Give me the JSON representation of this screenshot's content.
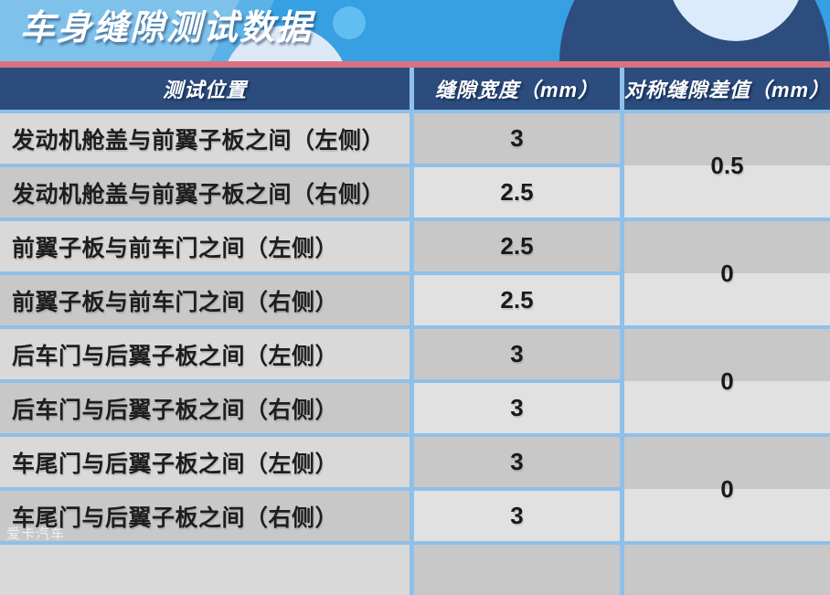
{
  "banner": {
    "title": "车身缝隙测试数据"
  },
  "watermark": "爱卡汽车",
  "table": {
    "headers": [
      "测试位置",
      "缝隙宽度（mm）",
      "对称缝隙差值（mm）"
    ],
    "rows": [
      {
        "position": "发动机舱盖与前翼子板之间（左侧）",
        "gap_width_mm": "3"
      },
      {
        "position": "发动机舱盖与前翼子板之间（右侧）",
        "gap_width_mm": "2.5"
      },
      {
        "position": "前翼子板与前车门之间（左侧）",
        "gap_width_mm": "2.5"
      },
      {
        "position": "前翼子板与前车门之间（右侧）",
        "gap_width_mm": "2.5"
      },
      {
        "position": "后车门与后翼子板之间（左侧）",
        "gap_width_mm": "3"
      },
      {
        "position": "后车门与后翼子板之间（右侧）",
        "gap_width_mm": "3"
      },
      {
        "position": "车尾门与后翼子板之间（左侧）",
        "gap_width_mm": "3"
      },
      {
        "position": "车尾门与后翼子板之间（右侧）",
        "gap_width_mm": "3"
      }
    ],
    "symmetric_diffs_mm": [
      "0.5",
      "0",
      "0",
      "0"
    ]
  },
  "colors": {
    "banner_light_blue": "#7EC2EC",
    "banner_bright_blue": "#36A0E2",
    "banner_navy_circle": "#2C4D7D",
    "banner_pale_circle": "#DDE9F7",
    "banner_light_circle": "#DCEBFB",
    "banner_small_dot": "#62BDF0",
    "pink_divider": "#DA7282",
    "header_navy": "#2B4C7C",
    "cell_border_blue": "#8FC0E8",
    "cell_gray_light": "#D9D9D9",
    "cell_gray_dark": "#C8C8C8",
    "cell_gray_lighter": "#E1E1E1",
    "text_dark": "#1E1E1E",
    "text_white": "#FFFFFF"
  },
  "chart_data": {
    "type": "table",
    "title": "车身缝隙测试数据",
    "columns": [
      "测试位置",
      "缝隙宽度（mm）",
      "对称缝隙差值（mm）"
    ],
    "rows": [
      [
        "发动机舱盖与前翼子板之间（左侧）",
        3,
        0.5
      ],
      [
        "发动机舱盖与前翼子板之间（右侧）",
        2.5,
        0.5
      ],
      [
        "前翼子板与前车门之间（左侧）",
        2.5,
        0
      ],
      [
        "前翼子板与前车门之间（右侧）",
        2.5,
        0
      ],
      [
        "后车门与后翼子板之间（左侧）",
        3,
        0
      ],
      [
        "后车门与后翼子板之间（右侧）",
        3,
        0
      ],
      [
        "车尾门与后翼子板之间（左侧）",
        3,
        0
      ],
      [
        "车尾门与后翼子板之间（右侧）",
        3,
        0
      ]
    ],
    "layout_note": "对称缝隙差值 column is merged across each left/right pair of rows"
  }
}
